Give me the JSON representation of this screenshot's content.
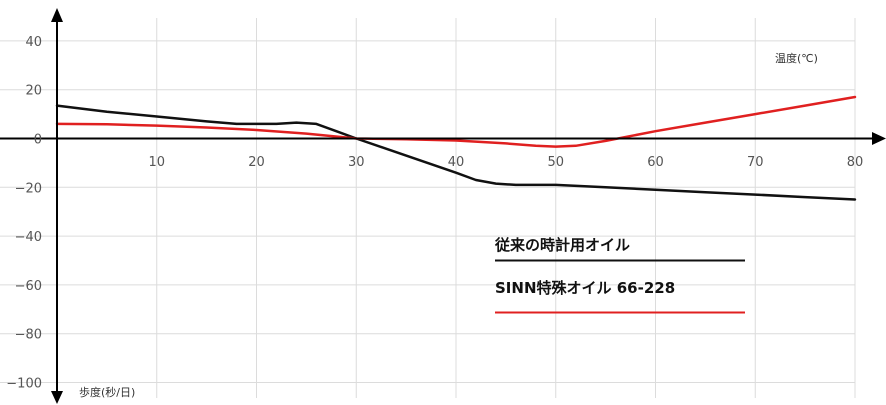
{
  "chart_data": {
    "type": "line",
    "xlabel": "温度(℃)",
    "ylabel": "歩度(秒/日)",
    "xlim": [
      0,
      82
    ],
    "ylim": [
      -100,
      45
    ],
    "x_ticks": [
      "10",
      "20",
      "30",
      "40",
      "50",
      "60",
      "70",
      "80"
    ],
    "y_ticks": [
      "40",
      "20",
      "0",
      "−20",
      "−40",
      "−60",
      "−80",
      "−100"
    ],
    "grid": true,
    "legend": "center-right",
    "series": [
      {
        "name": "従来の時計用オイル",
        "color": "#111111",
        "x": [
          0,
          5,
          10,
          15,
          18,
          20,
          22,
          24,
          26,
          28,
          30,
          35,
          40,
          42,
          44,
          46,
          48,
          50,
          55,
          60,
          65,
          70,
          75,
          80
        ],
        "y": [
          13.5,
          11,
          9,
          7,
          6,
          6,
          6,
          6.5,
          6,
          3,
          0,
          -7,
          -14,
          -17,
          -18.5,
          -19,
          -19,
          -19,
          -20,
          -21,
          -22,
          -23,
          -24,
          -25
        ]
      },
      {
        "name": "SINN特殊オイル 66-228",
        "color": "#e02020",
        "x": [
          0,
          5,
          10,
          15,
          20,
          25,
          30,
          35,
          40,
          45,
          48,
          50,
          52,
          55,
          60,
          65,
          70,
          75,
          80
        ],
        "y": [
          6,
          5.8,
          5.3,
          4.5,
          3.5,
          2,
          0,
          -0.3,
          -0.8,
          -2,
          -3,
          -3.3,
          -3,
          -1,
          3,
          6.5,
          10,
          13.5,
          17
        ]
      }
    ]
  }
}
